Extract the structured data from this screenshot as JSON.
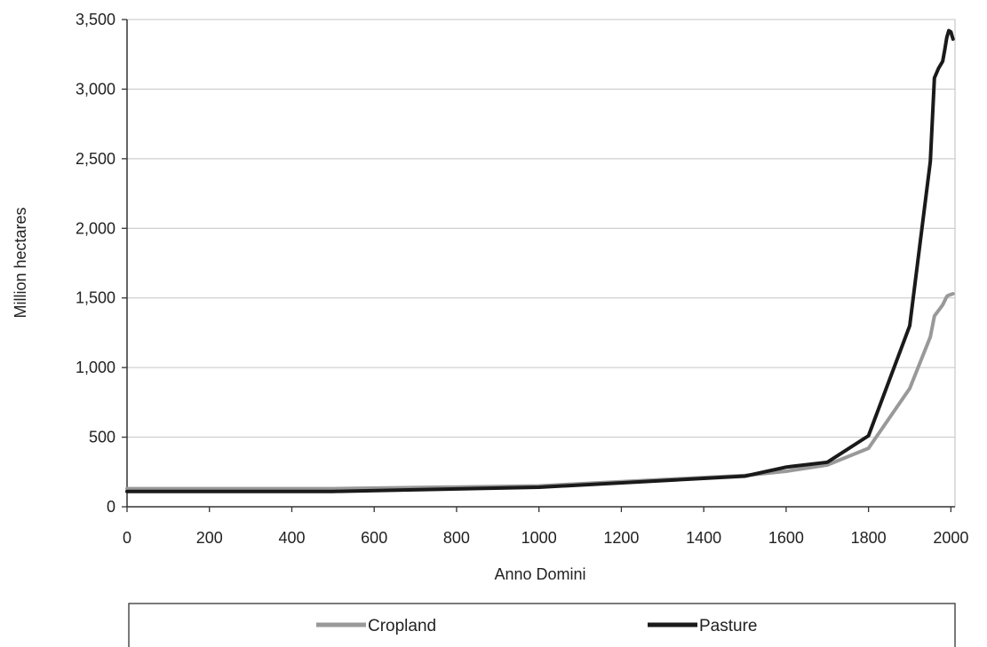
{
  "chart_data": {
    "type": "line",
    "xlabel": "Anno Domini",
    "ylabel": "Million hectares",
    "xlim": [
      0,
      2010
    ],
    "ylim": [
      0,
      3500
    ],
    "xticks": [
      0,
      200,
      400,
      600,
      800,
      1000,
      1200,
      1400,
      1600,
      1800,
      2000
    ],
    "yticks": [
      0,
      500,
      1000,
      1500,
      2000,
      2500,
      3000,
      3500
    ],
    "ytick_labels": [
      "0",
      "500",
      "1,000",
      "1,500",
      "2,000",
      "2,500",
      "3,000",
      "3,500"
    ],
    "grid": "horizontal",
    "legend_position": "bottom",
    "series": [
      {
        "name": "Cropland",
        "color": "#999999",
        "points": [
          [
            0,
            130
          ],
          [
            500,
            130
          ],
          [
            1000,
            150
          ],
          [
            1500,
            225
          ],
          [
            1600,
            255
          ],
          [
            1700,
            300
          ],
          [
            1800,
            420
          ],
          [
            1900,
            850
          ],
          [
            1950,
            1220
          ],
          [
            1960,
            1370
          ],
          [
            1970,
            1410
          ],
          [
            1980,
            1450
          ],
          [
            1985,
            1480
          ],
          [
            1990,
            1510
          ],
          [
            1995,
            1520
          ],
          [
            2000,
            1525
          ],
          [
            2005,
            1530
          ]
        ]
      },
      {
        "name": "Pasture",
        "color": "#1a1a1a",
        "points": [
          [
            0,
            110
          ],
          [
            500,
            110
          ],
          [
            1000,
            140
          ],
          [
            1500,
            220
          ],
          [
            1600,
            285
          ],
          [
            1700,
            320
          ],
          [
            1800,
            510
          ],
          [
            1900,
            1300
          ],
          [
            1950,
            2480
          ],
          [
            1960,
            3080
          ],
          [
            1970,
            3150
          ],
          [
            1980,
            3200
          ],
          [
            1985,
            3280
          ],
          [
            1990,
            3370
          ],
          [
            1995,
            3420
          ],
          [
            2000,
            3410
          ],
          [
            2005,
            3360
          ]
        ]
      }
    ]
  }
}
